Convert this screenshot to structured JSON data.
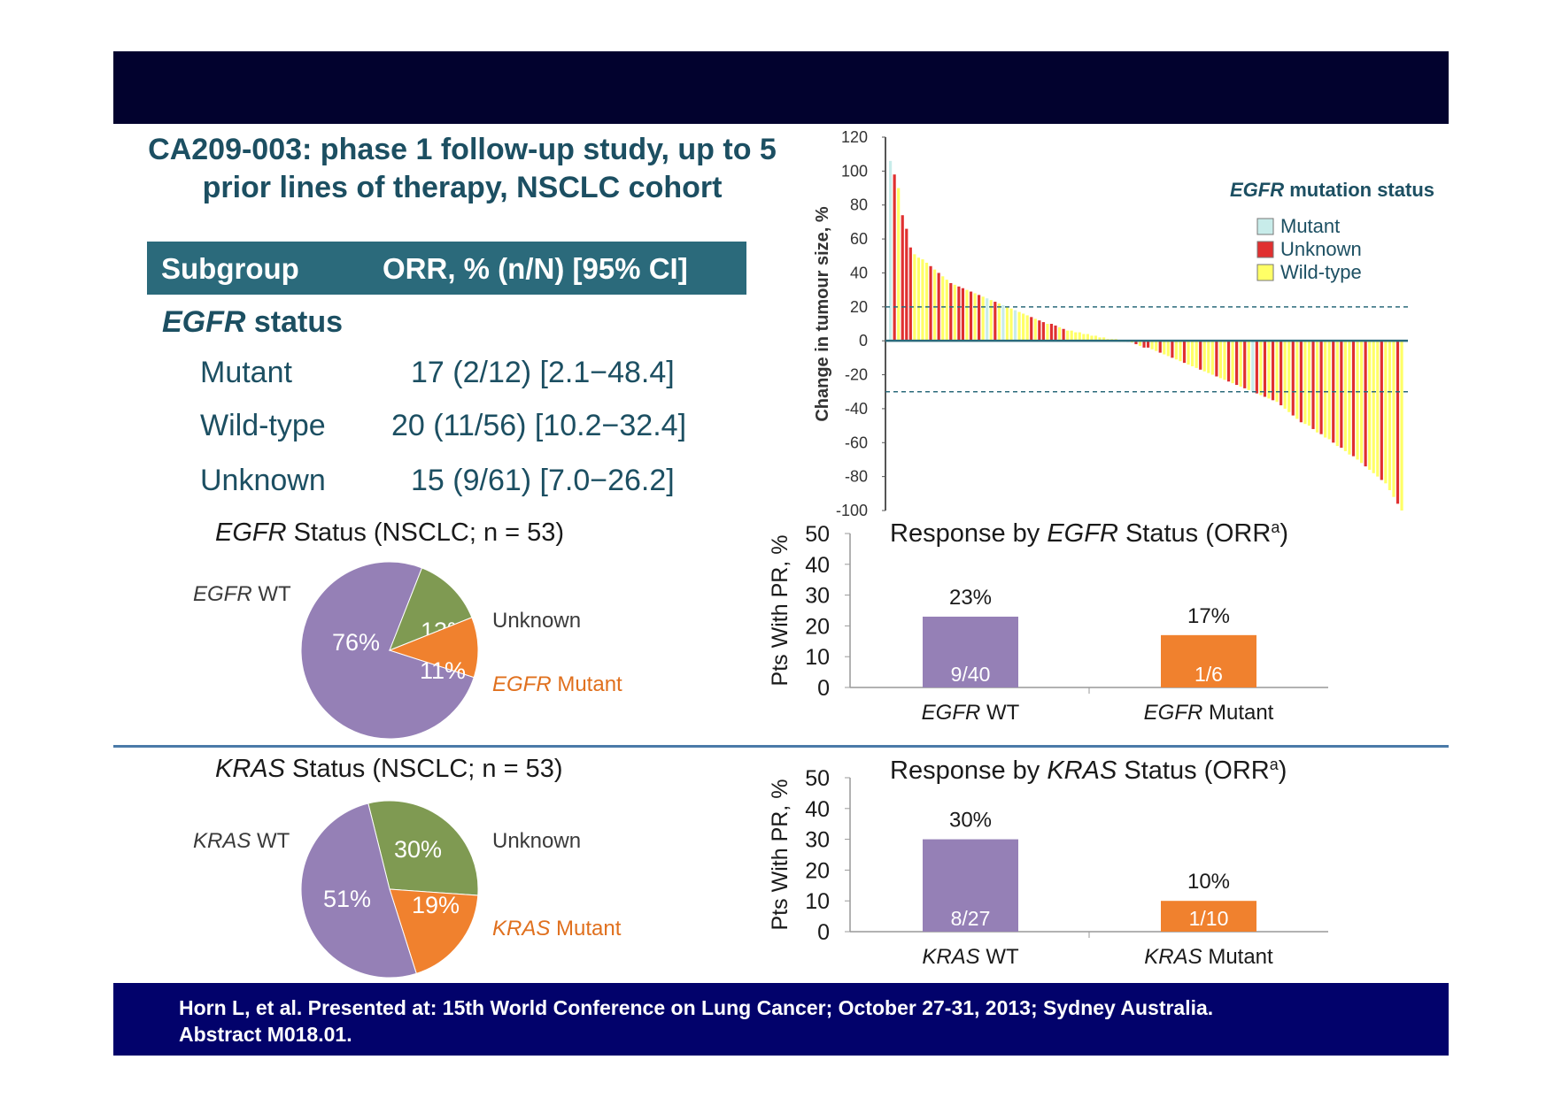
{
  "slide": {
    "title_line1": "CA209-003: phase 1 follow-up study, up to 5",
    "title_line2": "prior lines of therapy, NSCLC cohort",
    "footer_line1": "Horn L, et al. Presented at: 15th World Conference on Lung Cancer; October 27-31, 2013; Sydney Australia.",
    "footer_line2": "Abstract  M018.01."
  },
  "table": {
    "col_subgroup": "Subgroup",
    "col_orr": "ORR, % (n/N) [95% CI]",
    "section_italic": "EGFR",
    "section_rest": " status",
    "rows": [
      {
        "label": "Mutant",
        "value": "17 (2/12) [2.1−48.4]"
      },
      {
        "label": "Wild-type",
        "value": "20 (11/56) [10.2−32.4]"
      },
      {
        "label": "Unknown",
        "value": "15 (9/61) [7.0−26.2]"
      }
    ]
  },
  "colors": {
    "purple": "#9580b6",
    "green": "#7f9a52",
    "orange": "#f0812e",
    "mutant": "#c8ecea",
    "unknown": "#e03030",
    "wildtype": "#ffff66"
  },
  "chart_data": [
    {
      "type": "bar",
      "subtype": "waterfall",
      "ylabel": "Change in tumour size, %",
      "ylim": [
        -100,
        120
      ],
      "yticks": [
        "120",
        "100",
        "80",
        "60",
        "40",
        "20",
        "0",
        "-20",
        "-40",
        "-60",
        "-80",
        "-100"
      ],
      "reference_lines": [
        20,
        -30
      ],
      "legend": {
        "title_italic": "EGFR",
        "title_rest": " mutation status",
        "items": [
          "Mutant",
          "Unknown",
          "Wild-type"
        ],
        "position": "top-right"
      },
      "series_by_bar": [
        "Mutant",
        "Unknown",
        "Wild-type",
        "Unknown",
        "Unknown",
        "Unknown",
        "Wild-type",
        "Wild-type",
        "Wild-type",
        "Wild-type",
        "Unknown",
        "Wild-type",
        "Unknown",
        "Wild-type",
        "Wild-type",
        "Unknown",
        "Wild-type",
        "Unknown",
        "Unknown",
        "Wild-type",
        "Unknown",
        "Wild-type",
        "Unknown",
        "Wild-type",
        "Mutant",
        "Wild-type",
        "Unknown",
        "Wild-type",
        "Mutant",
        "Wild-type",
        "Wild-type",
        "Mutant",
        "Wild-type",
        "Wild-type",
        "Wild-type",
        "Unknown",
        "Wild-type",
        "Unknown",
        "Unknown",
        "Wild-type",
        "Unknown",
        "Unknown",
        "Wild-type",
        "Unknown",
        "Wild-type",
        "Wild-type",
        "Wild-type",
        "Wild-type",
        "Wild-type",
        "Wild-type",
        "Wild-type",
        "Wild-type",
        "Wild-type",
        "Wild-type",
        "Wild-type",
        "Wild-type",
        "Wild-type",
        "Wild-type",
        "Wild-type",
        "Unknown",
        "Wild-type",
        "Unknown",
        "Wild-type",
        "Unknown",
        "Unknown",
        "Wild-type",
        "Wild-type",
        "Unknown",
        "Wild-type",
        "Wild-type",
        "Unknown",
        "Wild-type",
        "Wild-type",
        "Unknown",
        "Wild-type",
        "Wild-type",
        "Wild-type",
        "Unknown",
        "Wild-type",
        "Wild-type",
        "Wild-type",
        "Unknown",
        "Wild-type",
        "Wild-type",
        "Unknown",
        "Wild-type",
        "Unknown",
        "Wild-type",
        "Unknown",
        "Wild-type",
        "Mutant",
        "Unknown",
        "Wild-type",
        "Unknown",
        "Wild-type",
        "Unknown",
        "Wild-type",
        "Unknown",
        "Wild-type",
        "Wild-type",
        "Unknown",
        "Wild-type",
        "Unknown",
        "Wild-type",
        "Wild-type",
        "Unknown",
        "Wild-type",
        "Unknown",
        "Wild-type",
        "Wild-type",
        "Unknown",
        "Wild-type",
        "Unknown",
        "Wild-type",
        "Wild-type",
        "Unknown",
        "Wild-type",
        "Wild-type",
        "Unknown",
        "Wild-type",
        "Wild-type",
        "Wild-type",
        "Unknown",
        "Wild-type",
        "Wild-type",
        "Wild-type",
        "Unknown",
        "Wild-type",
        "Wild-type",
        "Wild-type",
        "Unknown",
        "Wild-type",
        "Wild-type",
        "Wild-type",
        "Wild-type",
        "Unknown",
        "Unknown",
        "Wild-type"
      ],
      "values": [
        106,
        98,
        90,
        74,
        66,
        55,
        51,
        49,
        48,
        46,
        44,
        42,
        40,
        38,
        36,
        34,
        33,
        32,
        31,
        30,
        29,
        28,
        27,
        26,
        25,
        24,
        23,
        22,
        21,
        20,
        19,
        18,
        17,
        16,
        15,
        14,
        13,
        12,
        11,
        10,
        10,
        9,
        8,
        7,
        6,
        6,
        5,
        5,
        4,
        4,
        3,
        3,
        2,
        2,
        1,
        1,
        1,
        0,
        0,
        0,
        -1,
        -2,
        -3,
        -4,
        -4,
        -5,
        -6,
        -7,
        -8,
        -9,
        -10,
        -11,
        -12,
        -13,
        -14,
        -15,
        -16,
        -17,
        -18,
        -19,
        -20,
        -21,
        -22,
        -23,
        -24,
        -25,
        -26,
        -27,
        -28,
        -29,
        -30,
        -31,
        -32,
        -33,
        -34,
        -35,
        -36,
        -38,
        -40,
        -42,
        -44,
        -46,
        -48,
        -49,
        -50,
        -52,
        -54,
        -55,
        -57,
        -58,
        -60,
        -62,
        -63,
        -65,
        -67,
        -68,
        -70,
        -72,
        -74,
        -76,
        -78,
        -80,
        -82,
        -84,
        -88,
        -92,
        -96,
        -100
      ]
    },
    {
      "type": "pie",
      "title_italic": "EGFR",
      "title_rest": " Status (NSCLC; n = 53)",
      "slices": [
        {
          "label_italic": "EGFR",
          "label_rest": " WT",
          "value": 76,
          "text": "76%",
          "color": "#9580b6"
        },
        {
          "label_italic": "",
          "label_rest": "Unknown",
          "value": 13,
          "text": "13%",
          "color": "#7f9a52"
        },
        {
          "label_italic": "EGFR",
          "label_rest": " Mutant",
          "value": 11,
          "text": "11%",
          "color": "#f0812e"
        }
      ]
    },
    {
      "type": "bar",
      "title_pre": "Response by ",
      "title_italic": "EGFR",
      "title_post": " Status (ORR",
      "title_sup": "a",
      "title_end": ")",
      "ylabel": "Pts With PR, %",
      "ylim": [
        0,
        50
      ],
      "yticks": [
        "50",
        "40",
        "30",
        "20",
        "10",
        "0"
      ],
      "categories": [
        {
          "italic": "EGFR",
          "rest": " WT",
          "value": 23,
          "text": "23%",
          "inner": "9/40",
          "color": "#9580b6"
        },
        {
          "italic": "EGFR",
          "rest": " Mutant",
          "value": 17,
          "text": "17%",
          "inner": "1/6",
          "color": "#f0812e"
        }
      ]
    },
    {
      "type": "pie",
      "title_italic": "KRAS",
      "title_rest": " Status (NSCLC; n = 53)",
      "slices": [
        {
          "label_italic": "",
          "label_rest": "Unknown",
          "value": 30,
          "text": "30%",
          "color": "#7f9a52"
        },
        {
          "label_italic": "KRAS",
          "label_rest": " Mutant",
          "value": 19,
          "text": "19%",
          "color": "#f0812e"
        },
        {
          "label_italic": "KRAS",
          "label_rest": " WT",
          "value": 51,
          "text": "51%",
          "color": "#9580b6"
        }
      ]
    },
    {
      "type": "bar",
      "title_pre": "Response by ",
      "title_italic": "KRAS",
      "title_post": " Status (ORR",
      "title_sup": "a",
      "title_end": ")",
      "ylabel": "Pts With PR, %",
      "ylim": [
        0,
        50
      ],
      "yticks": [
        "50",
        "40",
        "30",
        "20",
        "10",
        "0"
      ],
      "categories": [
        {
          "italic": "KRAS",
          "rest": " WT",
          "value": 30,
          "text": "30%",
          "inner": "8/27",
          "color": "#9580b6"
        },
        {
          "italic": "KRAS",
          "rest": " Mutant",
          "value": 10,
          "text": "10%",
          "inner": "1/10",
          "color": "#f0812e"
        }
      ]
    }
  ]
}
